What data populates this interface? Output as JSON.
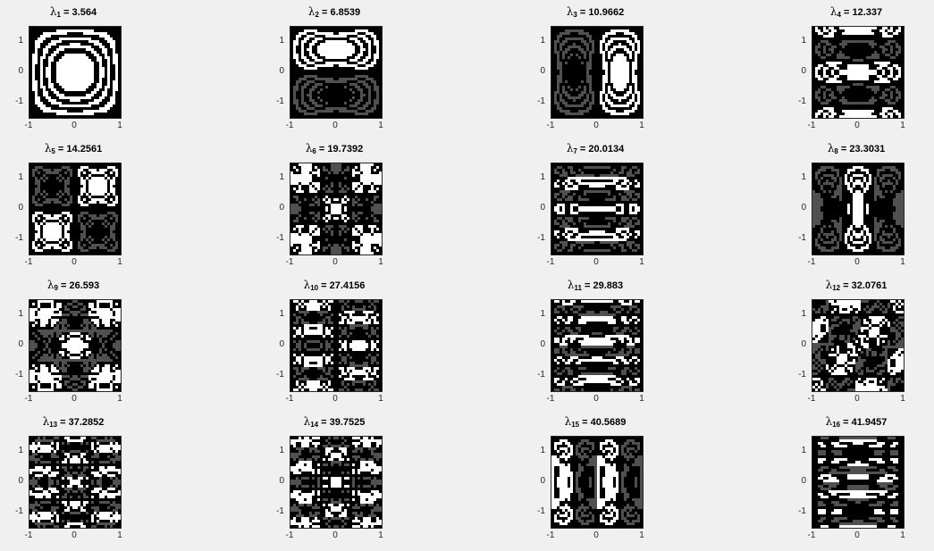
{
  "figure": {
    "background": "#f0f0f0",
    "colormap": "gray",
    "plot_type": "contour",
    "rows": 4,
    "cols": 4
  },
  "chart_data": [
    {
      "type": "contour",
      "title_symbol": "λ",
      "index": "1",
      "value": "3.564",
      "xlim": [
        -1,
        1
      ],
      "ylim": [
        -1.5,
        1.5
      ],
      "xticks": [
        "-1",
        "0",
        "1"
      ],
      "yticks": [
        "1",
        "0",
        "-1"
      ]
    },
    {
      "type": "contour",
      "title_symbol": "λ",
      "index": "2",
      "value": "6.8539",
      "xlim": [
        -1,
        1
      ],
      "ylim": [
        -1.5,
        1.5
      ],
      "xticks": [
        "-1",
        "0",
        "1"
      ],
      "yticks": [
        "1",
        "0",
        "-1"
      ]
    },
    {
      "type": "contour",
      "title_symbol": "λ",
      "index": "3",
      "value": "10.9662",
      "xlim": [
        -1,
        1
      ],
      "ylim": [
        -1.5,
        1.5
      ],
      "xticks": [
        "-1",
        "0",
        "1"
      ],
      "yticks": [
        "1",
        "0",
        "-1"
      ]
    },
    {
      "type": "contour",
      "title_symbol": "λ",
      "index": "4",
      "value": "12.337",
      "xlim": [
        -1,
        1
      ],
      "ylim": [
        -1.5,
        1.5
      ],
      "xticks": [
        "-1",
        "0",
        "1"
      ],
      "yticks": [
        "1",
        "0",
        "-1"
      ]
    },
    {
      "type": "contour",
      "title_symbol": "λ",
      "index": "5",
      "value": "14.2561",
      "xlim": [
        -1,
        1
      ],
      "ylim": [
        -1.5,
        1.5
      ],
      "xticks": [
        "-1",
        "0",
        "1"
      ],
      "yticks": [
        "1",
        "0",
        "-1"
      ]
    },
    {
      "type": "contour",
      "title_symbol": "λ",
      "index": "6",
      "value": "19.7392",
      "xlim": [
        -1,
        1
      ],
      "ylim": [
        -1.5,
        1.5
      ],
      "xticks": [
        "-1",
        "0",
        "1"
      ],
      "yticks": [
        "1",
        "0",
        "-1"
      ]
    },
    {
      "type": "contour",
      "title_symbol": "λ",
      "index": "7",
      "value": "20.0134",
      "xlim": [
        -1,
        1
      ],
      "ylim": [
        -1.5,
        1.5
      ],
      "xticks": [
        "-1",
        "0",
        "1"
      ],
      "yticks": [
        "1",
        "0",
        "-1"
      ]
    },
    {
      "type": "contour",
      "title_symbol": "λ",
      "index": "8",
      "value": "23.3031",
      "xlim": [
        -1,
        1
      ],
      "ylim": [
        -1.5,
        1.5
      ],
      "xticks": [
        "-1",
        "0",
        "1"
      ],
      "yticks": [
        "1",
        "0",
        "-1"
      ]
    },
    {
      "type": "contour",
      "title_symbol": "λ",
      "index": "9",
      "value": "26.593",
      "xlim": [
        -1,
        1
      ],
      "ylim": [
        -1.5,
        1.5
      ],
      "xticks": [
        "-1",
        "0",
        "1"
      ],
      "yticks": [
        "1",
        "0",
        "-1"
      ]
    },
    {
      "type": "contour",
      "title_symbol": "λ",
      "index": "10",
      "value": "27.4156",
      "xlim": [
        -1,
        1
      ],
      "ylim": [
        -1.5,
        1.5
      ],
      "xticks": [
        "-1",
        "0",
        "1"
      ],
      "yticks": [
        "1",
        "0",
        "-1"
      ]
    },
    {
      "type": "contour",
      "title_symbol": "λ",
      "index": "11",
      "value": "29.883",
      "xlim": [
        -1,
        1
      ],
      "ylim": [
        -1.5,
        1.5
      ],
      "xticks": [
        "-1",
        "0",
        "1"
      ],
      "yticks": [
        "1",
        "0",
        "-1"
      ]
    },
    {
      "type": "contour",
      "title_symbol": "λ",
      "index": "12",
      "value": "32.0761",
      "xlim": [
        -1,
        1
      ],
      "ylim": [
        -1.5,
        1.5
      ],
      "xticks": [
        "-1",
        "0",
        "1"
      ],
      "yticks": [
        "1",
        "0",
        "-1"
      ]
    },
    {
      "type": "contour",
      "title_symbol": "λ",
      "index": "13",
      "value": "37.2852",
      "xlim": [
        -1,
        1
      ],
      "ylim": [
        -1.5,
        1.5
      ],
      "xticks": [
        "-1",
        "0",
        "1"
      ],
      "yticks": [
        "1",
        "0",
        "-1"
      ]
    },
    {
      "type": "contour",
      "title_symbol": "λ",
      "index": "14",
      "value": "39.7525",
      "xlim": [
        -1,
        1
      ],
      "ylim": [
        -1.5,
        1.5
      ],
      "xticks": [
        "-1",
        "0",
        "1"
      ],
      "yticks": [
        "1",
        "0",
        "-1"
      ]
    },
    {
      "type": "contour",
      "title_symbol": "λ",
      "index": "15",
      "value": "40.5689",
      "xlim": [
        -1,
        1
      ],
      "ylim": [
        -1.5,
        1.5
      ],
      "xticks": [
        "-1",
        "0",
        "1"
      ],
      "yticks": [
        "1",
        "0",
        "-1"
      ]
    },
    {
      "type": "contour",
      "title_symbol": "λ",
      "index": "16",
      "value": "41.9457",
      "xlim": [
        -1,
        1
      ],
      "ylim": [
        -1.5,
        1.5
      ],
      "xticks": [
        "-1",
        "0",
        "1"
      ],
      "yticks": [
        "1",
        "0",
        "-1"
      ]
    }
  ]
}
